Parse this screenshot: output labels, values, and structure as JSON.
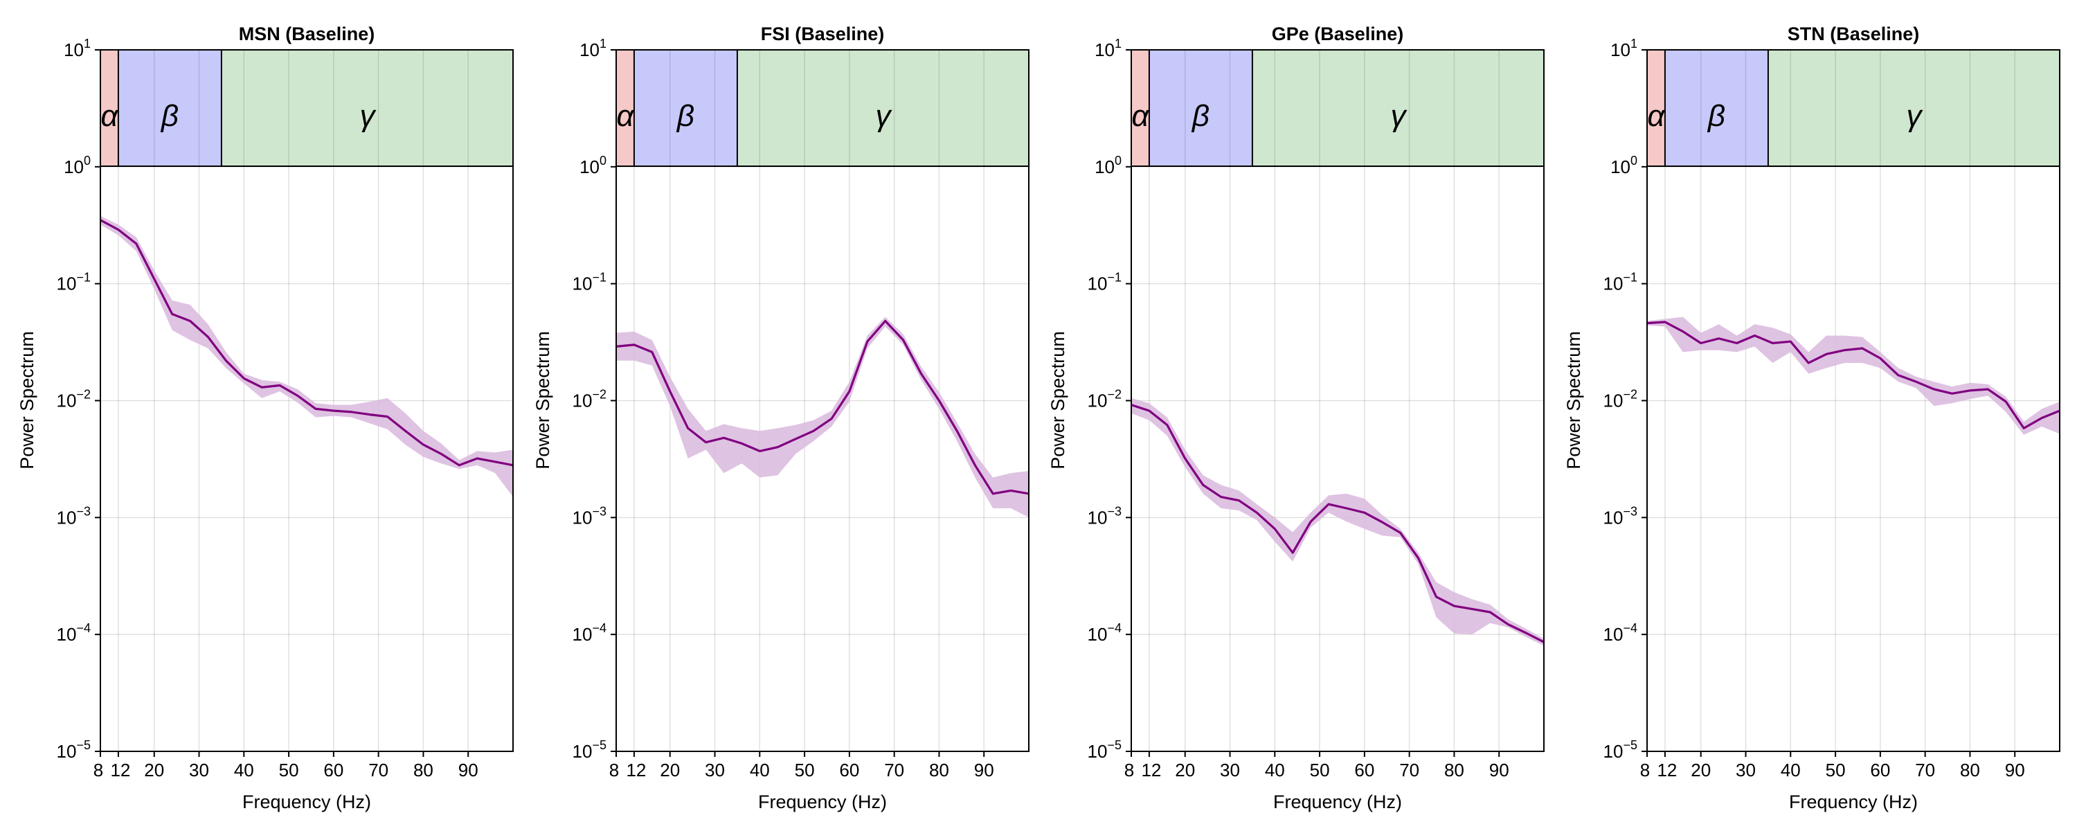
{
  "chart_data": [
    {
      "type": "area",
      "title": "MSN (Baseline)",
      "xlabel": "Frequency (Hz)",
      "ylabel": "Power Spectrum",
      "xlim": [
        8,
        100
      ],
      "ylim": [
        1e-05,
        10
      ],
      "yscale": "log",
      "grid": true,
      "xticks": [
        8,
        12,
        20,
        30,
        40,
        50,
        60,
        70,
        80,
        90
      ],
      "xtick_labels": [
        "8",
        "12",
        "20",
        "30",
        "40",
        "50",
        "60",
        "70",
        "80",
        "90"
      ],
      "yticks": [
        1e-05,
        0.0001,
        0.001,
        0.01,
        0.1,
        1,
        10
      ],
      "ytick_labels": [
        [
          "10",
          "−5"
        ],
        [
          "10",
          "−4"
        ],
        [
          "10",
          "−3"
        ],
        [
          "10",
          "−2"
        ],
        [
          "10",
          "−1"
        ],
        [
          "10",
          "0"
        ],
        [
          "10",
          "1"
        ]
      ],
      "bands": [
        {
          "label": "α",
          "range": [
            8,
            12
          ],
          "color": "#f5c9c7"
        },
        {
          "label": "β",
          "range": [
            12,
            35
          ],
          "color": "#c8c9fb"
        },
        {
          "label": "γ",
          "range": [
            35,
            100
          ],
          "color": "#cfe7cf"
        }
      ],
      "series": [
        {
          "color": "#800080",
          "band_color": "#d9b8dd",
          "x": [
            8,
            12,
            16,
            20,
            24,
            28,
            32,
            36,
            40,
            44,
            48,
            52,
            56,
            60,
            64,
            68,
            72,
            76,
            80,
            84,
            88,
            92,
            96,
            100
          ],
          "y": [
            0.35,
            0.29,
            0.22,
            0.11,
            0.055,
            0.048,
            0.035,
            0.022,
            0.0155,
            0.013,
            0.0135,
            0.011,
            0.0085,
            0.0082,
            0.008,
            0.0076,
            0.0073,
            0.0055,
            0.0042,
            0.0035,
            0.0028,
            0.0032,
            0.003,
            0.0028
          ],
          "y_upper": [
            0.38,
            0.32,
            0.25,
            0.13,
            0.072,
            0.066,
            0.045,
            0.026,
            0.017,
            0.015,
            0.0145,
            0.0125,
            0.0095,
            0.0092,
            0.0092,
            0.0098,
            0.0105,
            0.0078,
            0.0055,
            0.0043,
            0.0031,
            0.0037,
            0.0036,
            0.0038
          ],
          "y_lower": [
            0.32,
            0.26,
            0.19,
            0.09,
            0.04,
            0.033,
            0.028,
            0.019,
            0.014,
            0.0105,
            0.012,
            0.0096,
            0.0072,
            0.0074,
            0.0072,
            0.0064,
            0.0057,
            0.0042,
            0.0033,
            0.0029,
            0.0026,
            0.0028,
            0.0024,
            0.0015
          ]
        }
      ]
    },
    {
      "type": "area",
      "title": "FSI (Baseline)",
      "xlabel": "Frequency (Hz)",
      "ylabel": "Power Spectrum",
      "xlim": [
        8,
        100
      ],
      "ylim": [
        1e-05,
        10
      ],
      "yscale": "log",
      "grid": true,
      "xticks": [
        8,
        12,
        20,
        30,
        40,
        50,
        60,
        70,
        80,
        90
      ],
      "xtick_labels": [
        "8",
        "12",
        "20",
        "30",
        "40",
        "50",
        "60",
        "70",
        "80",
        "90"
      ],
      "yticks": [
        1e-05,
        0.0001,
        0.001,
        0.01,
        0.1,
        1,
        10
      ],
      "ytick_labels": [
        [
          "10",
          "−5"
        ],
        [
          "10",
          "−4"
        ],
        [
          "10",
          "−3"
        ],
        [
          "10",
          "−2"
        ],
        [
          "10",
          "−1"
        ],
        [
          "10",
          "0"
        ],
        [
          "10",
          "1"
        ]
      ],
      "bands": [
        {
          "label": "α",
          "range": [
            8,
            12
          ],
          "color": "#f5c9c7"
        },
        {
          "label": "β",
          "range": [
            12,
            35
          ],
          "color": "#c8c9fb"
        },
        {
          "label": "γ",
          "range": [
            35,
            100
          ],
          "color": "#cfe7cf"
        }
      ],
      "series": [
        {
          "color": "#800080",
          "band_color": "#d9b8dd",
          "x": [
            8,
            12,
            16,
            20,
            24,
            28,
            32,
            36,
            40,
            44,
            48,
            52,
            56,
            60,
            64,
            68,
            72,
            76,
            80,
            84,
            88,
            92,
            96,
            100
          ],
          "y": [
            0.029,
            0.03,
            0.026,
            0.012,
            0.0058,
            0.0044,
            0.0048,
            0.0043,
            0.0037,
            0.004,
            0.0047,
            0.0055,
            0.007,
            0.012,
            0.032,
            0.048,
            0.033,
            0.017,
            0.01,
            0.0055,
            0.0028,
            0.0016,
            0.0017,
            0.0016
          ],
          "y_upper": [
            0.038,
            0.039,
            0.033,
            0.016,
            0.0085,
            0.0055,
            0.0063,
            0.0058,
            0.0055,
            0.0058,
            0.0062,
            0.0068,
            0.0082,
            0.0145,
            0.036,
            0.052,
            0.037,
            0.0195,
            0.0118,
            0.0065,
            0.0035,
            0.0022,
            0.0024,
            0.0025
          ],
          "y_lower": [
            0.022,
            0.022,
            0.02,
            0.009,
            0.0032,
            0.0038,
            0.0024,
            0.0029,
            0.0022,
            0.0023,
            0.0035,
            0.0045,
            0.006,
            0.0098,
            0.028,
            0.043,
            0.03,
            0.015,
            0.0085,
            0.0045,
            0.0022,
            0.0012,
            0.0012,
            0.001
          ]
        }
      ]
    },
    {
      "type": "area",
      "title": "GPe (Baseline)",
      "xlabel": "Frequency (Hz)",
      "ylabel": "Power Spectrum",
      "xlim": [
        8,
        100
      ],
      "ylim": [
        1e-05,
        10
      ],
      "yscale": "log",
      "grid": true,
      "xticks": [
        8,
        12,
        20,
        30,
        40,
        50,
        60,
        70,
        80,
        90
      ],
      "xtick_labels": [
        "8",
        "12",
        "20",
        "30",
        "40",
        "50",
        "60",
        "70",
        "80",
        "90"
      ],
      "yticks": [
        1e-05,
        0.0001,
        0.001,
        0.01,
        0.1,
        1,
        10
      ],
      "ytick_labels": [
        [
          "10",
          "−5"
        ],
        [
          "10",
          "−4"
        ],
        [
          "10",
          "−3"
        ],
        [
          "10",
          "−2"
        ],
        [
          "10",
          "−1"
        ],
        [
          "10",
          "0"
        ],
        [
          "10",
          "1"
        ]
      ],
      "bands": [
        {
          "label": "α",
          "range": [
            8,
            12
          ],
          "color": "#f5c9c7"
        },
        {
          "label": "β",
          "range": [
            12,
            35
          ],
          "color": "#c8c9fb"
        },
        {
          "label": "γ",
          "range": [
            35,
            100
          ],
          "color": "#cfe7cf"
        }
      ],
      "series": [
        {
          "color": "#800080",
          "band_color": "#d9b8dd",
          "x": [
            8,
            12,
            16,
            20,
            24,
            28,
            32,
            36,
            40,
            44,
            48,
            52,
            56,
            60,
            64,
            68,
            72,
            76,
            80,
            84,
            88,
            92,
            96,
            100
          ],
          "y": [
            0.0092,
            0.0082,
            0.0062,
            0.0032,
            0.0019,
            0.0015,
            0.0014,
            0.0011,
            0.0008,
            0.0005,
            0.00092,
            0.0013,
            0.0012,
            0.0011,
            0.00091,
            0.00074,
            0.00045,
            0.00021,
            0.000175,
            0.000165,
            0.000155,
            0.000122,
            0.000103,
            8.6e-05
          ],
          "y_upper": [
            0.0105,
            0.0095,
            0.0072,
            0.0038,
            0.0023,
            0.0019,
            0.0017,
            0.0013,
            0.001,
            0.00075,
            0.0011,
            0.00155,
            0.0016,
            0.00145,
            0.00105,
            0.0008,
            0.0005,
            0.00028,
            0.00023,
            0.0002,
            0.00018,
            0.000135,
            0.000112,
            9.2e-05
          ],
          "y_lower": [
            0.0078,
            0.0068,
            0.005,
            0.0027,
            0.0016,
            0.0012,
            0.00115,
            0.00095,
            0.00062,
            0.00042,
            0.00082,
            0.0011,
            0.00092,
            0.0008,
            0.0007,
            0.00068,
            0.0004,
            0.00014,
            0.000102,
            0.0001,
            0.000125,
            0.000115,
            9.5e-05,
            8e-05
          ]
        }
      ]
    },
    {
      "type": "area",
      "title": "STN (Baseline)",
      "xlabel": "Frequency (Hz)",
      "ylabel": "Power Spectrum",
      "xlim": [
        8,
        100
      ],
      "ylim": [
        1e-05,
        10
      ],
      "yscale": "log",
      "grid": true,
      "xticks": [
        8,
        12,
        20,
        30,
        40,
        50,
        60,
        70,
        80,
        90
      ],
      "xtick_labels": [
        "8",
        "12",
        "20",
        "30",
        "40",
        "50",
        "60",
        "70",
        "80",
        "90"
      ],
      "yticks": [
        1e-05,
        0.0001,
        0.001,
        0.01,
        0.1,
        1,
        10
      ],
      "ytick_labels": [
        [
          "10",
          "−5"
        ],
        [
          "10",
          "−4"
        ],
        [
          "10",
          "−3"
        ],
        [
          "10",
          "−2"
        ],
        [
          "10",
          "−1"
        ],
        [
          "10",
          "0"
        ],
        [
          "10",
          "1"
        ]
      ],
      "bands": [
        {
          "label": "α",
          "range": [
            8,
            12
          ],
          "color": "#f5c9c7"
        },
        {
          "label": "β",
          "range": [
            12,
            35
          ],
          "color": "#c8c9fb"
        },
        {
          "label": "γ",
          "range": [
            35,
            100
          ],
          "color": "#cfe7cf"
        }
      ],
      "series": [
        {
          "color": "#800080",
          "band_color": "#d9b8dd",
          "x": [
            8,
            12,
            16,
            20,
            24,
            28,
            32,
            36,
            40,
            44,
            48,
            52,
            56,
            60,
            64,
            68,
            72,
            76,
            80,
            84,
            88,
            92,
            96,
            100
          ],
          "y": [
            0.046,
            0.047,
            0.039,
            0.031,
            0.034,
            0.031,
            0.036,
            0.031,
            0.032,
            0.021,
            0.025,
            0.027,
            0.028,
            0.023,
            0.0165,
            0.0145,
            0.0125,
            0.0115,
            0.0122,
            0.0125,
            0.0098,
            0.0058,
            0.0071,
            0.0082
          ],
          "y_upper": [
            0.048,
            0.05,
            0.052,
            0.038,
            0.045,
            0.036,
            0.045,
            0.042,
            0.037,
            0.026,
            0.036,
            0.036,
            0.035,
            0.026,
            0.019,
            0.016,
            0.0145,
            0.0132,
            0.0142,
            0.0138,
            0.0108,
            0.0066,
            0.0085,
            0.0098
          ],
          "y_lower": [
            0.044,
            0.043,
            0.026,
            0.027,
            0.027,
            0.026,
            0.029,
            0.021,
            0.026,
            0.017,
            0.019,
            0.021,
            0.021,
            0.019,
            0.0145,
            0.0128,
            0.009,
            0.0095,
            0.0103,
            0.011,
            0.008,
            0.0051,
            0.006,
            0.0052
          ]
        }
      ]
    }
  ]
}
